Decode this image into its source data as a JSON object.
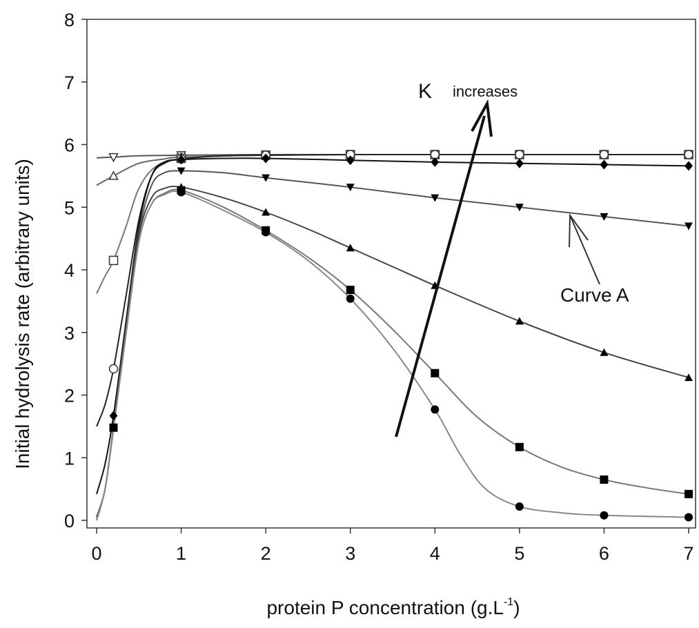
{
  "chart_data": {
    "type": "line",
    "xlabel": "protein P concentration (g.L",
    "xlabel_sup": "-1",
    "xlabel_end": ")",
    "ylabel": "Initial hydrolysis rate (arbitrary units)",
    "xlim": [
      0,
      7
    ],
    "ylim": [
      0,
      8
    ],
    "x_ticks": [
      0,
      1,
      2,
      3,
      4,
      5,
      6,
      7
    ],
    "y_ticks": [
      0,
      1,
      2,
      3,
      4,
      5,
      6,
      7,
      8
    ],
    "grid": false,
    "annotations": {
      "arrow_label_main": "K",
      "arrow_label_sub": "increases",
      "curve_label": "Curve A"
    },
    "series": [
      {
        "marker": "open-down-triangle",
        "color": "#555555",
        "x": [
          0.2,
          1,
          2,
          3,
          4,
          5,
          6,
          7
        ],
        "y": [
          5.8,
          5.83,
          5.84,
          5.84,
          5.84,
          5.84,
          5.84,
          5.84
        ],
        "curve": [
          [
            0,
            5.79
          ],
          [
            0.2,
            5.8
          ],
          [
            0.5,
            5.82
          ],
          [
            1,
            5.83
          ],
          [
            2,
            5.84
          ],
          [
            3,
            5.84
          ],
          [
            4,
            5.84
          ],
          [
            5,
            5.84
          ],
          [
            6,
            5.84
          ],
          [
            7,
            5.84
          ]
        ]
      },
      {
        "marker": "open-up-triangle",
        "color": "#666666",
        "x": [
          0.2,
          1,
          2,
          3,
          4,
          5,
          6,
          7
        ],
        "y": [
          5.5,
          5.8,
          5.83,
          5.84,
          5.84,
          5.84,
          5.84,
          5.84
        ],
        "curve": [
          [
            0,
            5.35
          ],
          [
            0.2,
            5.5
          ],
          [
            0.5,
            5.7
          ],
          [
            0.8,
            5.77
          ],
          [
            1,
            5.8
          ],
          [
            2,
            5.83
          ],
          [
            3,
            5.84
          ],
          [
            4,
            5.84
          ],
          [
            5,
            5.84
          ],
          [
            6,
            5.84
          ],
          [
            7,
            5.84
          ]
        ]
      },
      {
        "marker": "open-square",
        "color": "#777777",
        "x": [
          0.2,
          1,
          2,
          3,
          4,
          5,
          6,
          7
        ],
        "y": [
          4.15,
          5.78,
          5.83,
          5.84,
          5.84,
          5.84,
          5.84,
          5.84
        ],
        "curve": [
          [
            0,
            3.62
          ],
          [
            0.1,
            3.9
          ],
          [
            0.2,
            4.15
          ],
          [
            0.35,
            4.7
          ],
          [
            0.5,
            5.3
          ],
          [
            0.7,
            5.65
          ],
          [
            1,
            5.78
          ],
          [
            1.5,
            5.82
          ],
          [
            2,
            5.83
          ],
          [
            3,
            5.84
          ],
          [
            4,
            5.84
          ],
          [
            5,
            5.84
          ],
          [
            6,
            5.84
          ],
          [
            7,
            5.84
          ]
        ]
      },
      {
        "marker": "open-circle",
        "color": "#222222",
        "x": [
          0.2,
          1,
          2,
          3,
          4,
          5,
          6,
          7
        ],
        "y": [
          2.42,
          5.77,
          5.83,
          5.84,
          5.84,
          5.84,
          5.84,
          5.84
        ],
        "curve": [
          [
            0,
            1.5
          ],
          [
            0.1,
            1.85
          ],
          [
            0.2,
            2.42
          ],
          [
            0.35,
            3.6
          ],
          [
            0.5,
            4.8
          ],
          [
            0.65,
            5.5
          ],
          [
            0.8,
            5.7
          ],
          [
            1,
            5.77
          ],
          [
            1.5,
            5.82
          ],
          [
            2,
            5.83
          ],
          [
            3,
            5.84
          ],
          [
            4,
            5.84
          ],
          [
            5,
            5.84
          ],
          [
            6,
            5.84
          ],
          [
            7,
            5.84
          ]
        ]
      },
      {
        "marker": "filled-diamond",
        "color": "#111111",
        "x": [
          0.2,
          1,
          2,
          3,
          4,
          5,
          6,
          7
        ],
        "y": [
          1.67,
          5.76,
          5.78,
          5.75,
          5.72,
          5.7,
          5.68,
          5.66
        ],
        "curve": [
          [
            0,
            0.42
          ],
          [
            0.1,
            0.9
          ],
          [
            0.2,
            1.67
          ],
          [
            0.35,
            3.2
          ],
          [
            0.5,
            4.7
          ],
          [
            0.65,
            5.5
          ],
          [
            0.8,
            5.72
          ],
          [
            1,
            5.76
          ],
          [
            1.5,
            5.78
          ],
          [
            2,
            5.78
          ],
          [
            3,
            5.75
          ],
          [
            4,
            5.72
          ],
          [
            5,
            5.7
          ],
          [
            6,
            5.68
          ],
          [
            7,
            5.66
          ]
        ]
      },
      {
        "marker": "filled-down-triangle",
        "color": "#555555",
        "x": [
          1,
          2,
          3,
          4,
          5,
          6,
          7
        ],
        "y": [
          5.58,
          5.47,
          5.32,
          5.15,
          5.0,
          4.85,
          4.7
        ],
        "curve": [
          [
            0,
            0.05
          ],
          [
            0.1,
            0.5
          ],
          [
            0.2,
            1.5
          ],
          [
            0.35,
            3.1
          ],
          [
            0.5,
            4.6
          ],
          [
            0.65,
            5.35
          ],
          [
            0.8,
            5.55
          ],
          [
            1,
            5.58
          ],
          [
            1.5,
            5.55
          ],
          [
            2,
            5.47
          ],
          [
            3,
            5.32
          ],
          [
            4,
            5.15
          ],
          [
            5,
            5.0
          ],
          [
            6,
            4.85
          ],
          [
            7,
            4.7
          ]
        ]
      },
      {
        "marker": "filled-up-triangle",
        "color": "#444444",
        "x": [
          1,
          2,
          3,
          4,
          5,
          6,
          7
        ],
        "y": [
          5.32,
          4.92,
          4.35,
          3.75,
          3.18,
          2.68,
          2.28
        ],
        "curve": [
          [
            0,
            0.05
          ],
          [
            0.1,
            0.5
          ],
          [
            0.2,
            1.5
          ],
          [
            0.35,
            3.1
          ],
          [
            0.5,
            4.55
          ],
          [
            0.65,
            5.15
          ],
          [
            0.8,
            5.3
          ],
          [
            1,
            5.32
          ],
          [
            1.5,
            5.15
          ],
          [
            2,
            4.92
          ],
          [
            2.5,
            4.65
          ],
          [
            3,
            4.35
          ],
          [
            3.5,
            4.05
          ],
          [
            4,
            3.75
          ],
          [
            5,
            3.18
          ],
          [
            6,
            2.68
          ],
          [
            7,
            2.28
          ]
        ]
      },
      {
        "marker": "filled-square",
        "color": "#777777",
        "x": [
          0.2,
          1,
          2,
          3,
          4,
          5,
          6,
          7
        ],
        "y": [
          1.48,
          5.27,
          4.63,
          3.68,
          2.35,
          1.17,
          0.65,
          0.42
        ],
        "curve": [
          [
            0,
            0.0
          ],
          [
            0.1,
            0.5
          ],
          [
            0.2,
            1.48
          ],
          [
            0.35,
            3.0
          ],
          [
            0.5,
            4.45
          ],
          [
            0.65,
            5.05
          ],
          [
            0.8,
            5.22
          ],
          [
            1,
            5.27
          ],
          [
            1.5,
            5.0
          ],
          [
            2,
            4.63
          ],
          [
            2.5,
            4.2
          ],
          [
            3,
            3.68
          ],
          [
            3.5,
            3.05
          ],
          [
            4,
            2.35
          ],
          [
            4.5,
            1.65
          ],
          [
            5,
            1.17
          ],
          [
            5.5,
            0.85
          ],
          [
            6,
            0.65
          ],
          [
            6.5,
            0.52
          ],
          [
            7,
            0.42
          ]
        ]
      },
      {
        "marker": "filled-circle",
        "color": "#888888",
        "x": [
          1,
          2,
          3,
          4,
          5,
          6,
          7
        ],
        "y": [
          5.24,
          4.6,
          3.54,
          1.77,
          0.22,
          0.08,
          0.05
        ],
        "curve": [
          [
            0,
            0.0
          ],
          [
            0.1,
            0.5
          ],
          [
            0.2,
            1.45
          ],
          [
            0.35,
            3.0
          ],
          [
            0.5,
            4.45
          ],
          [
            0.65,
            5.05
          ],
          [
            0.8,
            5.2
          ],
          [
            1,
            5.24
          ],
          [
            1.5,
            4.95
          ],
          [
            2,
            4.6
          ],
          [
            2.5,
            4.15
          ],
          [
            3,
            3.54
          ],
          [
            3.5,
            2.75
          ],
          [
            4,
            1.77
          ],
          [
            4.3,
            1.05
          ],
          [
            4.6,
            0.5
          ],
          [
            5,
            0.22
          ],
          [
            5.5,
            0.12
          ],
          [
            6,
            0.08
          ],
          [
            7,
            0.05
          ]
        ]
      }
    ]
  }
}
